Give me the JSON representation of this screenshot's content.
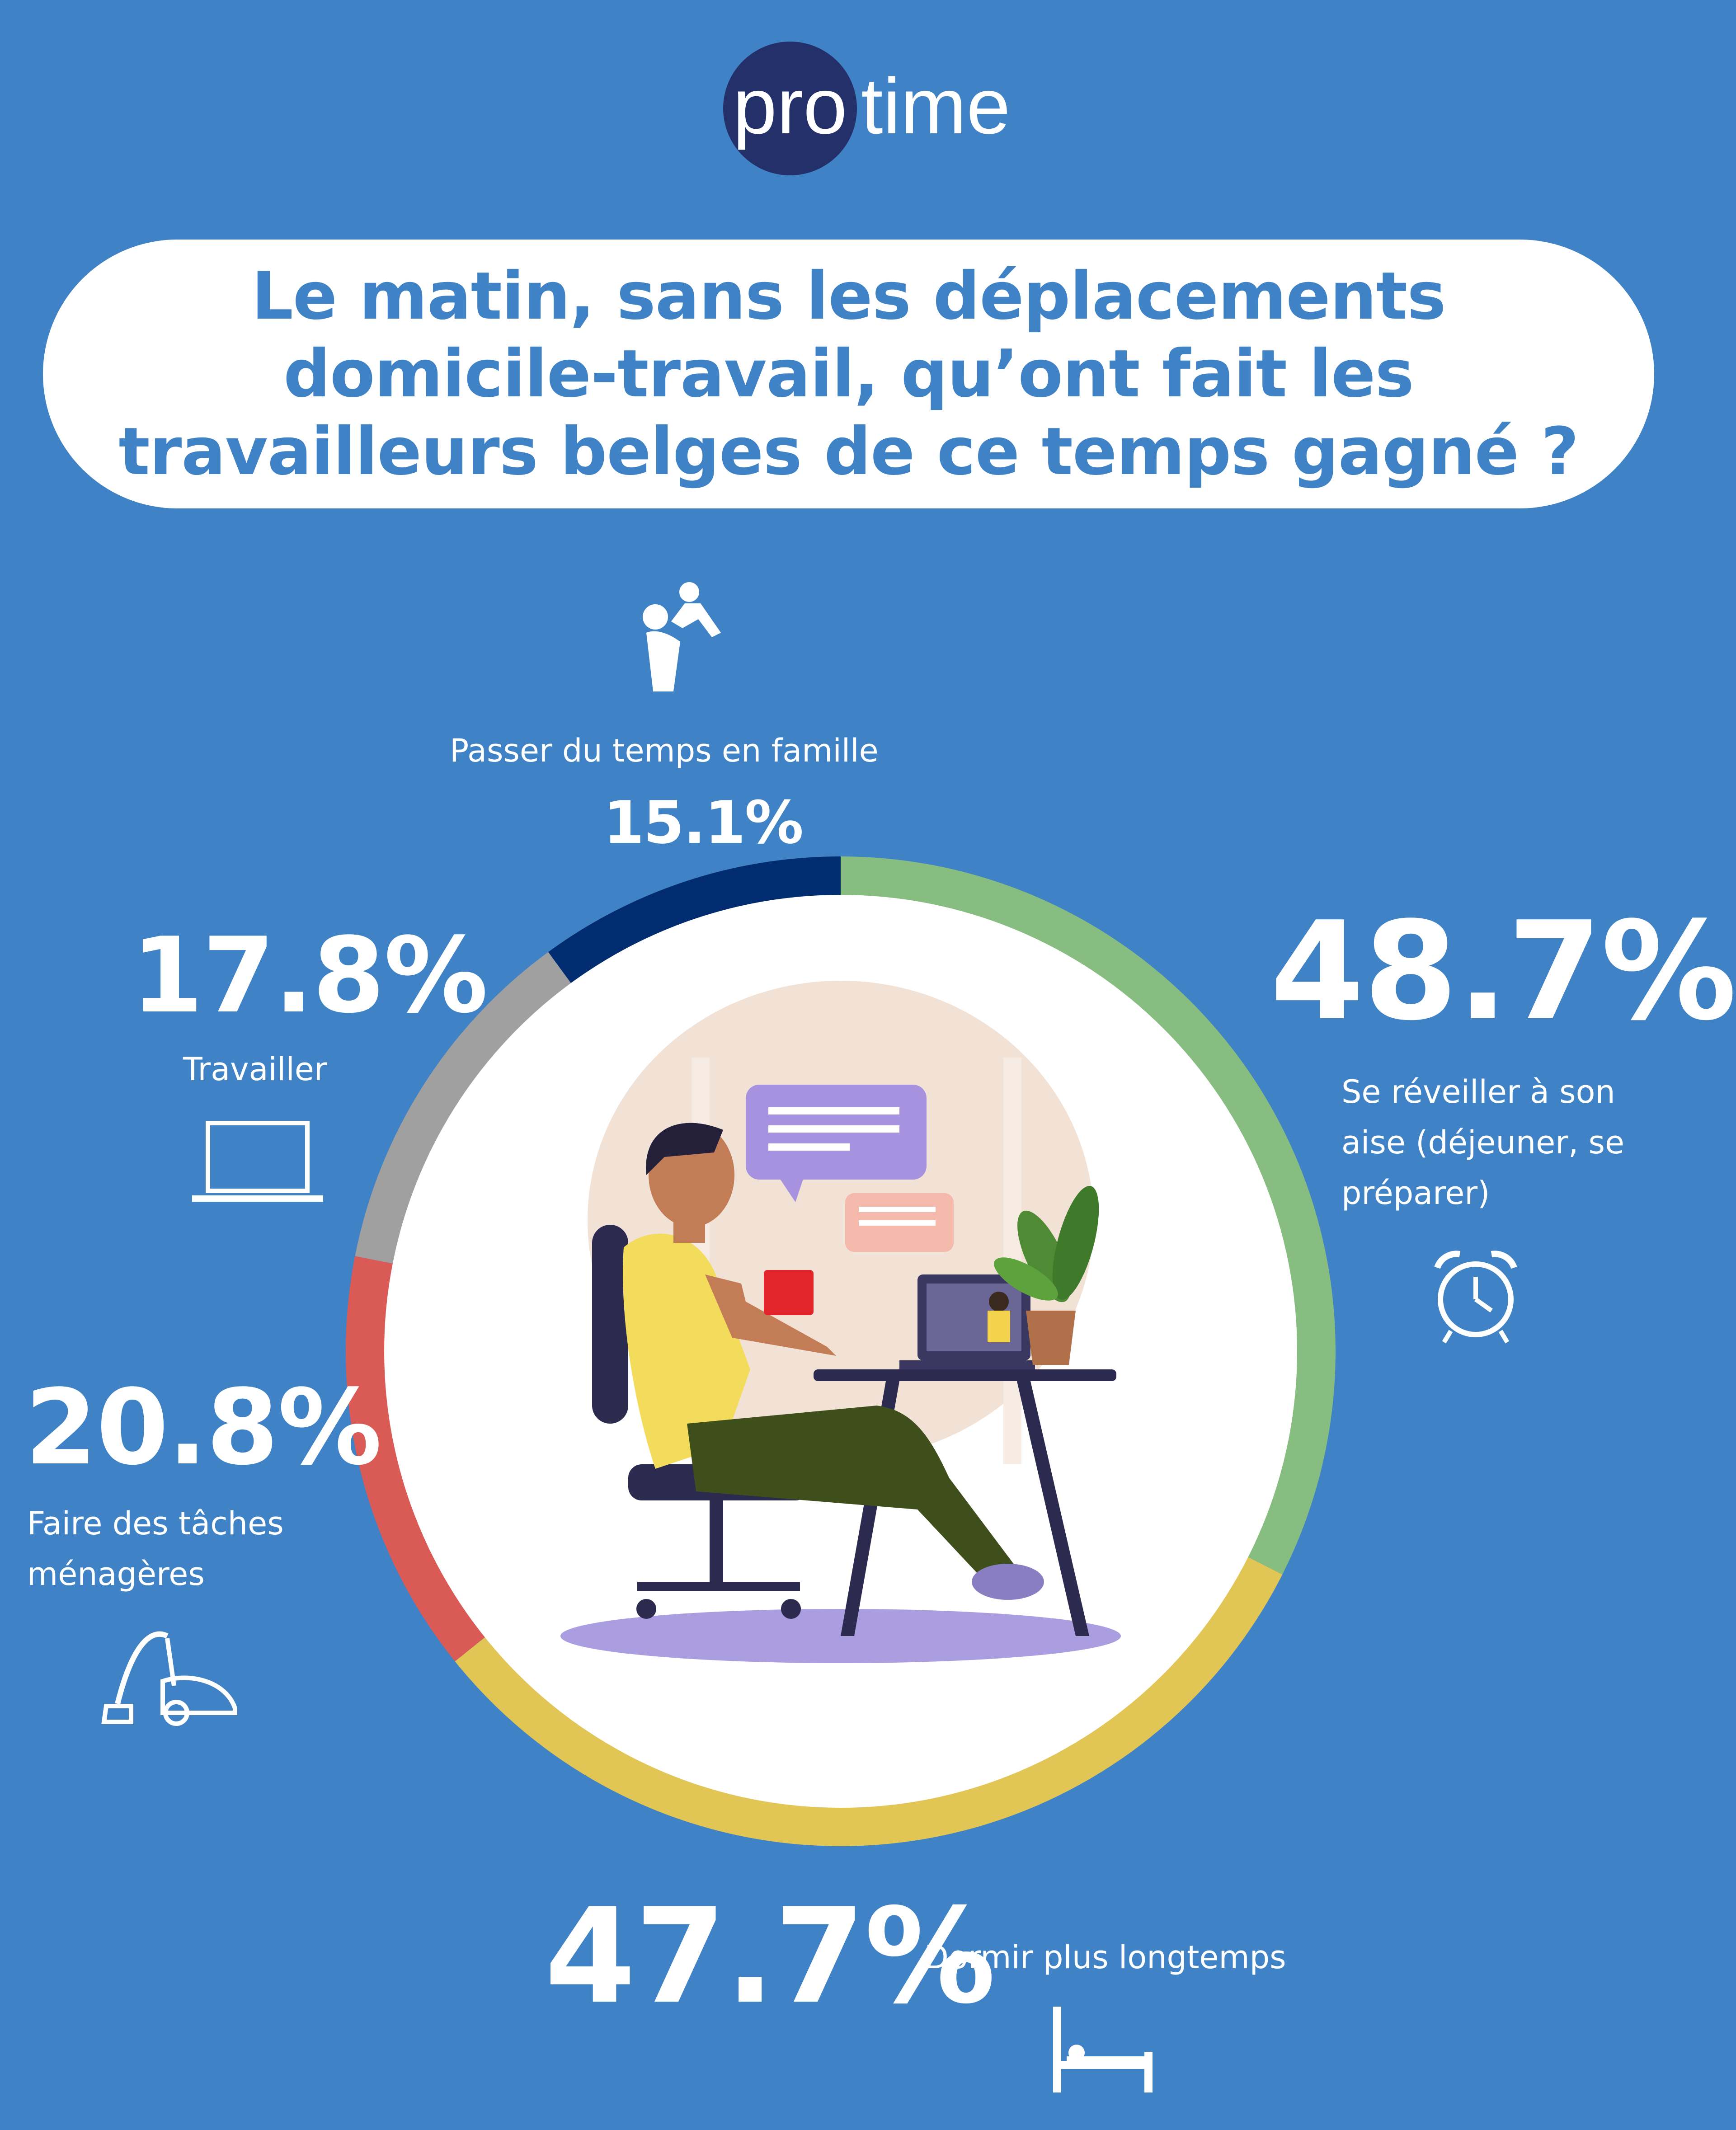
{
  "brand": {
    "logo_part1": "pro",
    "logo_part2": "time",
    "logo_circle_color": "#24306a",
    "logo_text_color": "#ffffff"
  },
  "title": "Le matin, sans les déplacements domicile-travail, qu’ont fait les travailleurs belges de ce temps gagné ?",
  "colors": {
    "background": "#3f82c5",
    "title_text": "#3f82c5",
    "pill": "#ffffff"
  },
  "chart_data": {
    "type": "pie",
    "variant": "donut",
    "unit": "%",
    "slices": [
      {
        "label": "Se réveiller à son aise (déjeuner, se préparer)",
        "value": 48.7,
        "value_label": "48.7%",
        "color": "#88bd82",
        "icon": "alarm-clock-icon"
      },
      {
        "label": "Dormir plus longtemps",
        "value": 47.7,
        "value_label": "47.7%",
        "color": "#e1c555",
        "icon": "bed-icon"
      },
      {
        "label": "Faire des tâches ménagères",
        "value": 20.8,
        "value_label": "20.8%",
        "color": "#da5a56",
        "icon": "vacuum-cleaner-icon"
      },
      {
        "label": "Travailler",
        "value": 17.8,
        "value_label": "17.8%",
        "color": "#a0a0a0",
        "icon": "laptop-icon"
      },
      {
        "label": "Passer du temps en famille",
        "value": 15.1,
        "value_label": "15.1%",
        "color": "#022c70",
        "icon": "parent-child-icon"
      }
    ],
    "center_illustration": "person-working-from-home-illustration"
  }
}
